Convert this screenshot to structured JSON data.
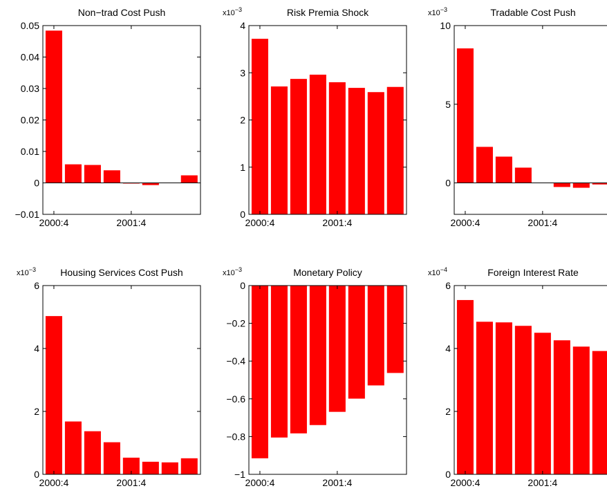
{
  "chart_data": [
    {
      "type": "bar",
      "title": "Non−trad Cost Push",
      "categories": [
        "2000:4",
        null,
        null,
        null,
        "2001:4",
        null,
        null,
        null
      ],
      "values": [
        0.0484,
        0.0059,
        0.0057,
        0.004,
        -0.0002,
        -0.0007,
        0,
        0.0024
      ],
      "color": "#ff0000",
      "ylim": [
        -0.01,
        0.05
      ],
      "yticks": [
        {
          "value": -0.01,
          "label": "−0.01"
        },
        0,
        0.01,
        0.02,
        0.03,
        0.04,
        0.05
      ]
    },
    {
      "type": "bar",
      "title": "Risk Premia Shock",
      "categories": [
        "2000:4",
        null,
        null,
        null,
        "2001:4",
        null,
        null,
        null
      ],
      "values": [
        3.72,
        2.71,
        2.87,
        2.96,
        2.8,
        2.68,
        2.59,
        2.7
      ],
      "color": "#ff0000",
      "ylim": [
        0,
        4
      ],
      "yticks": [
        0,
        1,
        2,
        3,
        4
      ],
      "axis_multiplier": "x10",
      "axis_multiplier_exponent": "−3"
    },
    {
      "type": "bar",
      "title": "Tradable Cost Push",
      "categories": [
        "2000:4",
        null,
        null,
        null,
        "2001:4",
        null,
        null,
        null
      ],
      "values": [
        8.55,
        2.29,
        1.67,
        0.97,
        -0.02,
        -0.26,
        -0.31,
        -0.1
      ],
      "color": "#ff0000",
      "ylim": [
        -2,
        10
      ],
      "yticks": [
        0,
        5,
        10
      ],
      "axis_multiplier": "x10",
      "axis_multiplier_exponent": "−3"
    },
    {
      "type": "bar",
      "title": "Housing Services Cost Push",
      "categories": [
        "2000:4",
        null,
        null,
        null,
        "2001:4",
        null,
        null,
        null
      ],
      "values": [
        5.03,
        1.68,
        1.37,
        1.02,
        0.53,
        0.4,
        0.38,
        0.51
      ],
      "color": "#ff0000",
      "ylim": [
        0,
        6
      ],
      "yticks": [
        0,
        2,
        4,
        6
      ],
      "axis_multiplier": "x10",
      "axis_multiplier_exponent": "−3"
    },
    {
      "type": "bar",
      "title": "Monetary Policy",
      "categories": [
        "2000:4",
        null,
        null,
        null,
        "2001:4",
        null,
        null,
        null
      ],
      "values": [
        -0.915,
        -0.805,
        -0.783,
        -0.739,
        -0.669,
        -0.599,
        -0.529,
        -0.463
      ],
      "color": "#ff0000",
      "ylim": [
        -1,
        0
      ],
      "yticks": [
        {
          "value": -1,
          "label": "−1"
        },
        {
          "value": -0.8,
          "label": "−0.8"
        },
        {
          "value": -0.6,
          "label": "−0.6"
        },
        {
          "value": -0.4,
          "label": "−0.4"
        },
        {
          "value": -0.2,
          "label": "−0.2"
        },
        0
      ],
      "axis_multiplier": "x10",
      "axis_multiplier_exponent": "−3"
    },
    {
      "type": "bar",
      "title": "Foreign Interest Rate",
      "categories": [
        "2000:4",
        null,
        null,
        null,
        "2001:4",
        null,
        null,
        null
      ],
      "values": [
        5.54,
        4.85,
        4.83,
        4.72,
        4.5,
        4.26,
        4.06,
        3.92
      ],
      "color": "#ff0000",
      "ylim": [
        0,
        6
      ],
      "yticks": [
        0,
        2,
        4,
        6
      ],
      "axis_multiplier": "x10",
      "axis_multiplier_exponent": "−4"
    }
  ]
}
